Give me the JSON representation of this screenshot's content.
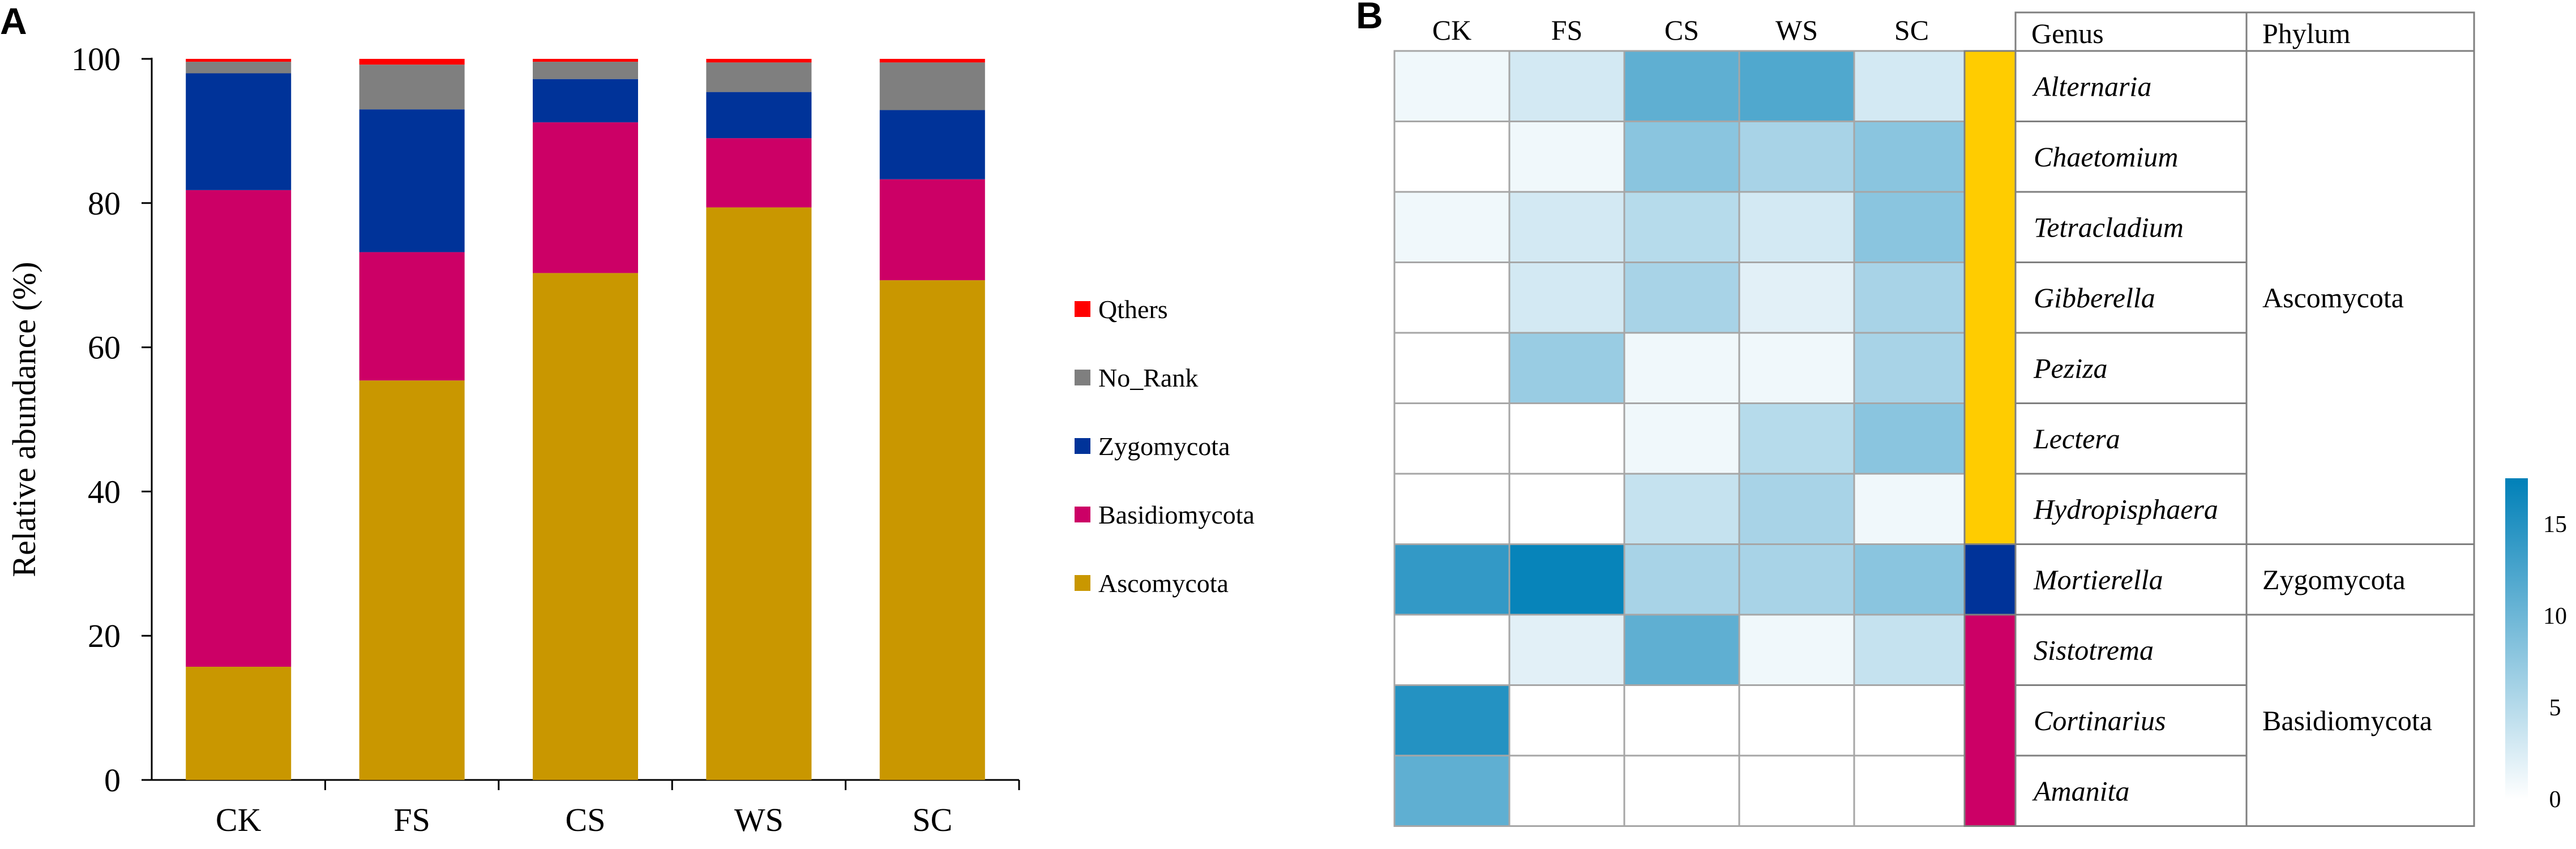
{
  "panels": {
    "a_label": "A",
    "b_label": "B"
  },
  "chart_data": [
    {
      "type": "bar",
      "stacked": true,
      "title": "",
      "xlabel": "",
      "ylabel": "Relative abundance (%)",
      "ylim": [
        0,
        100
      ],
      "yticks": [
        0,
        20,
        40,
        60,
        80,
        100
      ],
      "categories": [
        "CK",
        "FS",
        "CS",
        "WS",
        "SC"
      ],
      "series": [
        {
          "name": "Ascomycota",
          "color": "#C99700",
          "values": [
            15.7,
            55.4,
            70.3,
            79.4,
            69.3
          ]
        },
        {
          "name": "Basidiomycota",
          "color": "#CC0066",
          "values": [
            66.1,
            17.8,
            20.9,
            9.6,
            14.0
          ]
        },
        {
          "name": "Zygomycota",
          "color": "#003399",
          "values": [
            16.2,
            19.8,
            6.0,
            6.4,
            9.6
          ]
        },
        {
          "name": "No_Rank",
          "color": "#7F7F7F",
          "values": [
            1.6,
            6.2,
            2.4,
            4.1,
            6.6
          ]
        },
        {
          "name": "Qthers",
          "color": "#FF0000",
          "values": [
            0.4,
            0.8,
            0.4,
            0.5,
            0.5
          ]
        }
      ],
      "legend_order": [
        "Qthers",
        "No_Rank",
        "Zygomycota",
        "Basidiomycota",
        "Ascomycota"
      ],
      "legend_position": "right"
    },
    {
      "type": "heatmap",
      "columns": [
        "CK",
        "FS",
        "CS",
        "WS",
        "SC"
      ],
      "rows": [
        "Alternaria",
        "Chaetomium",
        "Tetracladium",
        "Gibberella",
        "Peziza",
        "Lectera",
        "Hydropisphaera",
        "Mortierella",
        "Sistotrema",
        "Cortinarius",
        "Amanita"
      ],
      "values": [
        [
          1,
          3,
          11,
          12,
          3
        ],
        [
          0,
          1,
          8,
          6,
          8
        ],
        [
          1,
          3,
          5,
          3,
          8
        ],
        [
          0,
          3,
          6,
          2,
          6
        ],
        [
          0,
          7,
          1,
          1,
          6
        ],
        [
          0,
          0,
          1,
          5,
          8
        ],
        [
          0,
          0,
          4,
          6,
          1
        ],
        [
          14,
          17,
          6,
          6,
          8
        ],
        [
          0,
          2,
          11,
          1,
          4
        ],
        [
          15,
          0,
          0,
          0,
          0
        ],
        [
          11,
          0,
          0,
          0,
          0
        ]
      ],
      "colorbar": {
        "min": 0,
        "max": 17.5,
        "ticks": [
          0,
          5,
          10,
          15
        ],
        "low_color": "#FFFFFF",
        "high_color": "#0080B8"
      },
      "genus_header": "Genus",
      "phylum_header": "Phylum",
      "phyla": [
        {
          "name": "Ascomycota",
          "color": "#FFCC00",
          "start_row": 0,
          "end_row": 6
        },
        {
          "name": "Zygomycota",
          "color": "#003399",
          "start_row": 7,
          "end_row": 7
        },
        {
          "name": "Basidiomycota",
          "color": "#CC0066",
          "start_row": 8,
          "end_row": 10
        }
      ]
    }
  ]
}
